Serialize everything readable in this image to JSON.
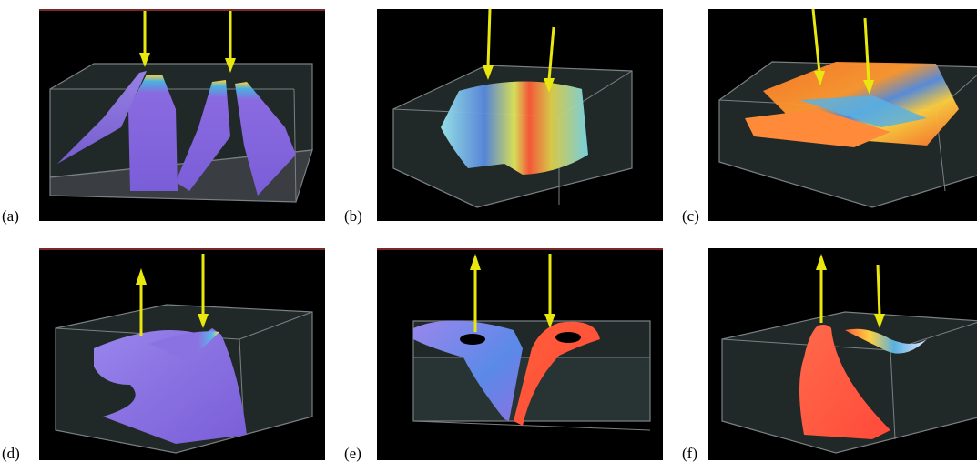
{
  "figure": {
    "panels": [
      {
        "label": "(a)",
        "surface": "four-purple-sheets",
        "arrows": "two-down"
      },
      {
        "label": "(b)",
        "surface": "rainbow-ring",
        "arrows": "two-down"
      },
      {
        "label": "(c)",
        "surface": "orange-layered-sheets",
        "arrows": "two-down"
      },
      {
        "label": "(d)",
        "surface": "purple-funnel",
        "arrows": "up-and-down"
      },
      {
        "label": "(e)",
        "surface": "purple-red-v",
        "arrows": "up-and-down"
      },
      {
        "label": "(f)",
        "surface": "red-funnel-with-arc",
        "arrows": "up-and-down"
      }
    ],
    "colors": {
      "background": "#000000",
      "box": "#5a6266",
      "arrow": "#e8e80e",
      "purple": "#8a6ae0",
      "red": "#ff4a3a",
      "orange": "#ff8a2a",
      "cyan": "#7fe0f0"
    }
  }
}
